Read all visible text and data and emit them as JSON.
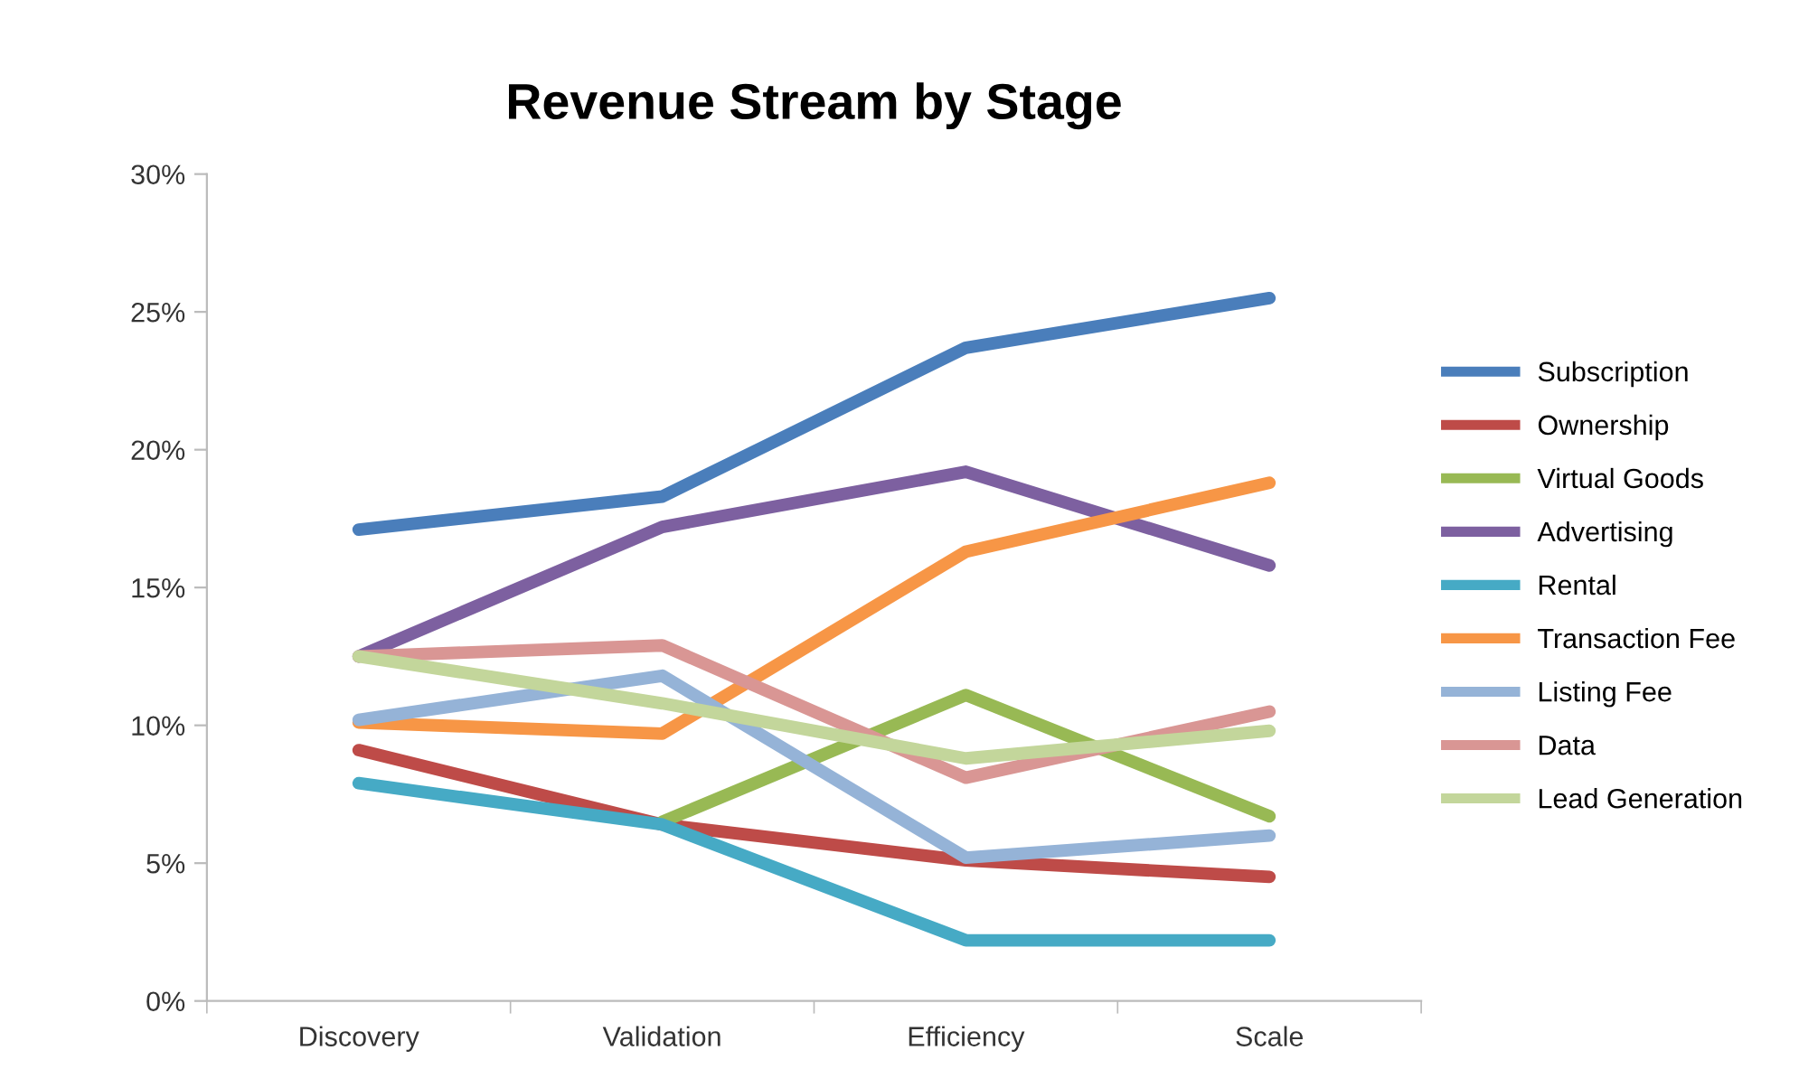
{
  "chart_data": {
    "type": "line",
    "title": "Revenue Stream by Stage",
    "categories": [
      "Discovery",
      "Validation",
      "Efficiency",
      "Scale"
    ],
    "ylim": [
      0,
      30
    ],
    "yticks": [
      {
        "value": 0,
        "label": "0%"
      },
      {
        "value": 5,
        "label": "5%"
      },
      {
        "value": 10,
        "label": "10%"
      },
      {
        "value": 15,
        "label": "15%"
      },
      {
        "value": 20,
        "label": "20%"
      },
      {
        "value": 25,
        "label": "25%"
      },
      {
        "value": 30,
        "label": "30%"
      }
    ],
    "grid": false,
    "legend": "right",
    "marker": "none",
    "line_style": "solid",
    "series": [
      {
        "name": "Subscription",
        "color": "#4a7ebb",
        "values": [
          17.1,
          18.3,
          23.7,
          25.5
        ]
      },
      {
        "name": "Ownership",
        "color": "#be4b48",
        "values": [
          9.1,
          6.4,
          5.1,
          4.5
        ]
      },
      {
        "name": "Virtual Goods",
        "color": "#98b954",
        "values": [
          null,
          6.5,
          11.1,
          6.7
        ]
      },
      {
        "name": "Advertising",
        "color": "#7d60a0",
        "values": [
          12.5,
          17.2,
          19.2,
          15.8
        ]
      },
      {
        "name": "Rental",
        "color": "#46aac5",
        "values": [
          7.9,
          6.4,
          2.2,
          2.2
        ]
      },
      {
        "name": "Transaction Fee",
        "color": "#f79646",
        "values": [
          10.1,
          9.7,
          16.3,
          18.8
        ]
      },
      {
        "name": "Listing Fee",
        "color": "#95b3d7",
        "values": [
          10.2,
          11.8,
          5.2,
          6.0
        ]
      },
      {
        "name": "Data",
        "color": "#d99694",
        "values": [
          12.5,
          12.9,
          8.1,
          10.5
        ]
      },
      {
        "name": "Lead Generation",
        "color": "#c3d69b",
        "values": [
          12.5,
          10.8,
          8.8,
          9.8
        ]
      }
    ]
  }
}
